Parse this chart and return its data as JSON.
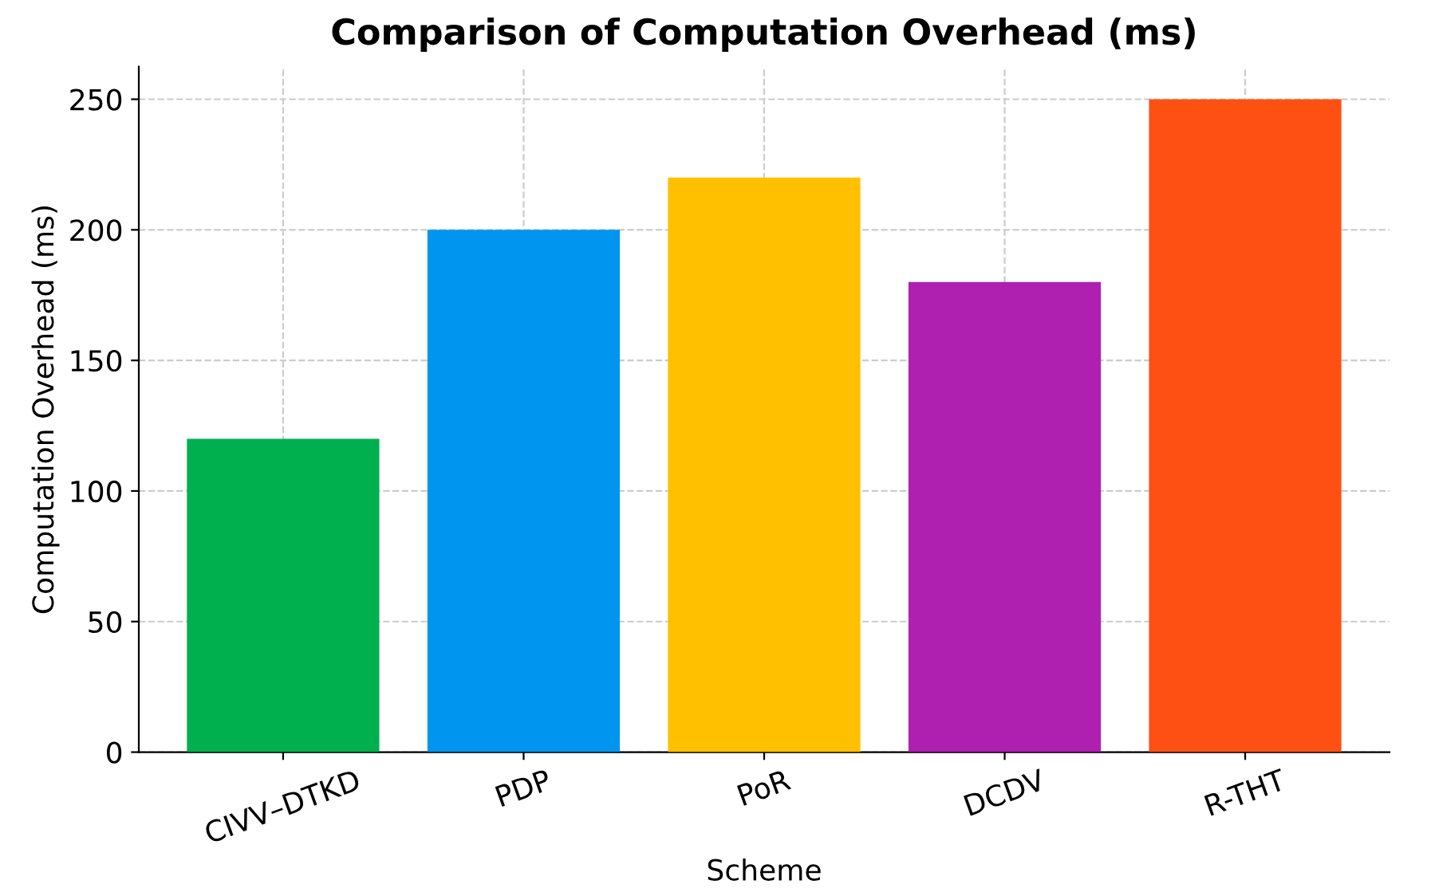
{
  "chart_data": {
    "type": "bar",
    "title": "Comparison of Computation Overhead (ms)",
    "xlabel": "Scheme",
    "ylabel": "Computation Overhead (ms)",
    "categories": [
      "CIVV–DTKD",
      "PDP",
      "PoR",
      "DCDV",
      "R-THT"
    ],
    "values": [
      120,
      200,
      220,
      180,
      250
    ],
    "colors": [
      "#00b04f",
      "#0096f0",
      "#ffc000",
      "#b020b0",
      "#ff5014"
    ],
    "ylim": [
      0,
      262.5
    ],
    "yticks": [
      0,
      50,
      100,
      150,
      200,
      250
    ],
    "grid": true,
    "line_style": "dashed"
  }
}
